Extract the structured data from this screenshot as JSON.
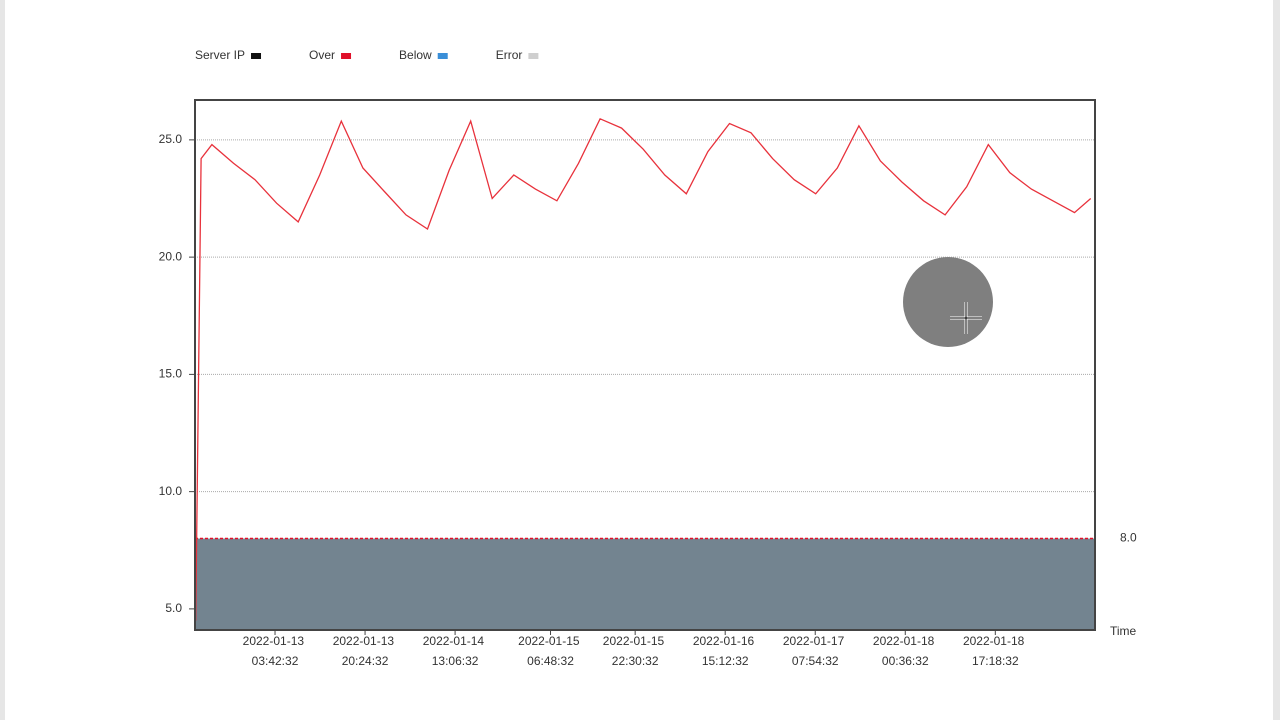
{
  "chart_data": {
    "type": "line",
    "legend": [
      {
        "name": "Server IP",
        "color": "#111111"
      },
      {
        "name": "Over",
        "color": "#e0102a"
      },
      {
        "name": "Below",
        "color": "#3a8fd8"
      },
      {
        "name": "Error",
        "color": "#cfcfcf"
      }
    ],
    "color": "#e8323c",
    "x": [
      "2022-01-12 13:00:00",
      "2022-01-12 14:00:00",
      "2022-01-12 16:00:00",
      "2022-01-12 20:00:00",
      "2022-01-13 00:00:00",
      "2022-01-13 04:00:00",
      "2022-01-13 08:00:00",
      "2022-01-13 12:00:00",
      "2022-01-13 16:00:00",
      "2022-01-13 20:00:00",
      "2022-01-14 00:00:00",
      "2022-01-14 04:00:00",
      "2022-01-14 08:00:00",
      "2022-01-14 12:00:00",
      "2022-01-14 16:00:00",
      "2022-01-14 20:00:00",
      "2022-01-15 00:00:00",
      "2022-01-15 04:00:00",
      "2022-01-15 08:00:00",
      "2022-01-15 12:00:00",
      "2022-01-15 16:00:00",
      "2022-01-15 20:00:00",
      "2022-01-16 00:00:00",
      "2022-01-16 04:00:00",
      "2022-01-16 08:00:00",
      "2022-01-16 12:00:00",
      "2022-01-16 16:00:00",
      "2022-01-16 20:00:00",
      "2022-01-17 00:00:00",
      "2022-01-17 04:00:00",
      "2022-01-17 08:00:00",
      "2022-01-17 12:00:00",
      "2022-01-17 16:00:00",
      "2022-01-17 20:00:00",
      "2022-01-18 00:00:00",
      "2022-01-18 04:00:00",
      "2022-01-18 08:00:00",
      "2022-01-18 12:00:00",
      "2022-01-18 16:00:00",
      "2022-01-18 20:00:00",
      "2022-01-19 00:00:00",
      "2022-01-19 04:00:00",
      "2022-01-19 08:00:00",
      "2022-01-19 11:00:00"
    ],
    "values": [
      4.5,
      24.2,
      24.8,
      24.0,
      23.3,
      22.3,
      21.5,
      23.5,
      25.8,
      23.8,
      22.8,
      21.8,
      21.2,
      23.7,
      25.8,
      22.5,
      23.5,
      22.9,
      22.4,
      24.0,
      25.9,
      25.5,
      24.6,
      23.5,
      22.7,
      24.5,
      25.7,
      25.3,
      24.2,
      23.3,
      22.7,
      23.8,
      25.6,
      24.1,
      23.2,
      22.4,
      21.8,
      23.0,
      24.8,
      23.6,
      22.9,
      22.4,
      21.9,
      22.5
    ],
    "threshold": {
      "value": 8,
      "label": "8.0"
    },
    "xlim": [
      "2022-01-12 12:52:00",
      "2022-01-19 11:48:00"
    ],
    "xticks": [
      "2022-01-13 03:42:32",
      "2022-01-13 20:24:32",
      "2022-01-14 13:06:32",
      "2022-01-15 06:48:32",
      "2022-01-15 22:30:32",
      "2022-01-16 15:12:32",
      "2022-01-17 07:54:32",
      "2022-01-18 00:36:32",
      "2022-01-18 17:18:32"
    ],
    "xlabel": "Time",
    "ylim": [
      4.1,
      26.7
    ],
    "yticks": [
      {
        "value": 5,
        "label": "5.0"
      },
      {
        "value": 10,
        "label": "10.0"
      },
      {
        "value": 15,
        "label": "15.0"
      },
      {
        "value": 20,
        "label": "20.0"
      },
      {
        "value": 25,
        "label": "25.0"
      }
    ],
    "grid": true
  }
}
